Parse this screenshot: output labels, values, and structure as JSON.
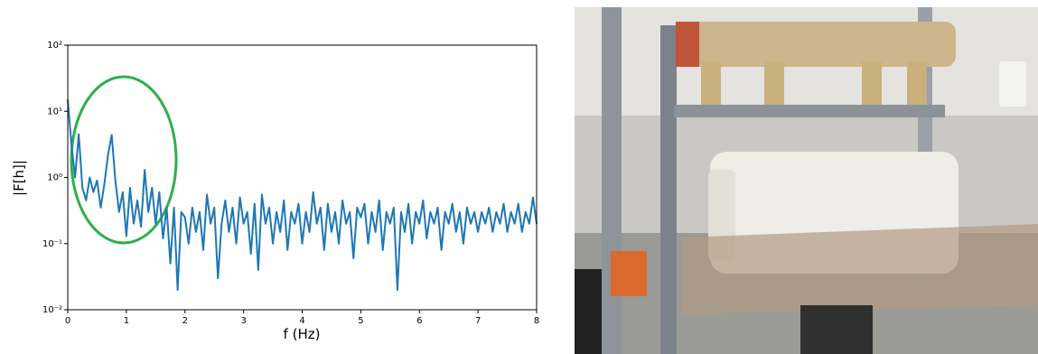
{
  "chart_data": {
    "type": "line",
    "xlabel": "f (Hz)",
    "ylabel": "|F[h]|",
    "xlim": [
      0,
      8
    ],
    "xticks": [
      0,
      1,
      2,
      3,
      4,
      5,
      6,
      7,
      8
    ],
    "ylim": [
      0.01,
      100
    ],
    "yscale": "log",
    "yticks": [
      {
        "value": 0.01,
        "label": "10⁻²"
      },
      {
        "value": 0.1,
        "label": "10⁻¹"
      },
      {
        "value": 1,
        "label": "10⁰"
      },
      {
        "value": 10,
        "label": "10¹"
      },
      {
        "value": 100,
        "label": "10²"
      }
    ],
    "x": [
      0,
      0.0625,
      0.125,
      0.1875,
      0.25,
      0.3125,
      0.375,
      0.4375,
      0.5,
      0.5625,
      0.625,
      0.6875,
      0.75,
      0.8125,
      0.875,
      0.9375,
      1,
      1.0625,
      1.125,
      1.1875,
      1.25,
      1.3125,
      1.375,
      1.4375,
      1.5,
      1.5625,
      1.625,
      1.6875,
      1.75,
      1.8125,
      1.875,
      1.9375,
      2,
      2.0625,
      2.125,
      2.1875,
      2.25,
      2.3125,
      2.375,
      2.4375,
      2.5,
      2.5625,
      2.625,
      2.6875,
      2.75,
      2.8125,
      2.875,
      2.9375,
      3,
      3.0625,
      3.125,
      3.1875,
      3.25,
      3.3125,
      3.375,
      3.4375,
      3.5,
      3.5625,
      3.625,
      3.6875,
      3.75,
      3.8125,
      3.875,
      3.9375,
      4,
      4.0625,
      4.125,
      4.1875,
      4.25,
      4.3125,
      4.375,
      4.4375,
      4.5,
      4.5625,
      4.625,
      4.6875,
      4.75,
      4.8125,
      4.875,
      4.9375,
      5,
      5.0625,
      5.125,
      5.1875,
      5.25,
      5.3125,
      5.375,
      5.4375,
      5.5,
      5.5625,
      5.625,
      5.6875,
      5.75,
      5.8125,
      5.875,
      5.9375,
      6,
      6.0625,
      6.125,
      6.1875,
      6.25,
      6.3125,
      6.375,
      6.4375,
      6.5,
      6.5625,
      6.625,
      6.6875,
      6.75,
      6.8125,
      6.875,
      6.9375,
      7,
      7.0625,
      7.125,
      7.1875,
      7.25,
      7.3125,
      7.375,
      7.4375,
      7.5,
      7.5625,
      7.625,
      7.6875,
      7.75,
      7.8125,
      7.875,
      7.9375,
      8
    ],
    "series": [
      {
        "color": "#1f77b4",
        "values": [
          15,
          3.2,
          1.0,
          4.5,
          0.7,
          0.45,
          1.0,
          0.6,
          0.9,
          0.35,
          0.8,
          2.2,
          4.4,
          0.9,
          0.3,
          0.6,
          0.13,
          0.7,
          0.2,
          0.45,
          0.18,
          1.3,
          0.3,
          0.7,
          0.2,
          0.6,
          0.12,
          0.35,
          0.05,
          0.35,
          0.02,
          0.3,
          0.25,
          0.1,
          0.35,
          0.15,
          0.3,
          0.08,
          0.55,
          0.2,
          0.35,
          0.03,
          0.2,
          0.45,
          0.15,
          0.35,
          0.1,
          0.5,
          0.2,
          0.3,
          0.07,
          0.4,
          0.04,
          0.55,
          0.2,
          0.35,
          0.1,
          0.3,
          0.15,
          0.45,
          0.08,
          0.3,
          0.2,
          0.4,
          0.1,
          0.3,
          0.15,
          0.6,
          0.2,
          0.35,
          0.08,
          0.4,
          0.15,
          0.3,
          0.1,
          0.45,
          0.2,
          0.3,
          0.06,
          0.35,
          0.25,
          0.4,
          0.1,
          0.3,
          0.15,
          0.45,
          0.08,
          0.3,
          0.2,
          0.35,
          0.02,
          0.3,
          0.15,
          0.4,
          0.1,
          0.3,
          0.2,
          0.45,
          0.12,
          0.3,
          0.2,
          0.35,
          0.08,
          0.3,
          0.2,
          0.4,
          0.15,
          0.3,
          0.1,
          0.35,
          0.2,
          0.3,
          0.15,
          0.3,
          0.2,
          0.35,
          0.15,
          0.3,
          0.2,
          0.4,
          0.15,
          0.3,
          0.2,
          0.4,
          0.15,
          0.3,
          0.2,
          0.5,
          0.2
        ]
      }
    ]
  }
}
